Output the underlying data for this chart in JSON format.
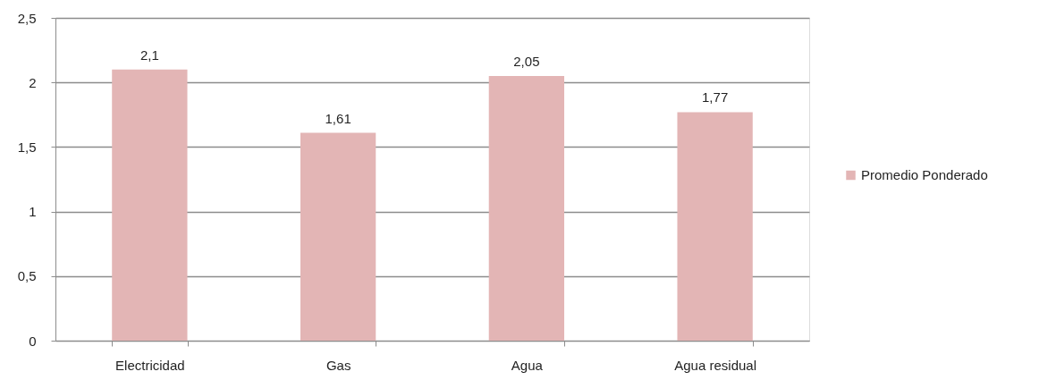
{
  "chart_data": {
    "type": "bar",
    "categories": [
      "Electricidad",
      "Gas",
      "Agua",
      "Agua residual"
    ],
    "series": [
      {
        "name": "Promedio Ponderado",
        "color": "#e3b5b5",
        "values": [
          2.1,
          1.61,
          2.05,
          1.77
        ],
        "value_labels": [
          "2,1",
          "1,61",
          "2,05",
          "1,77"
        ]
      }
    ],
    "ylim": [
      0,
      2.5
    ],
    "yticks": [
      0,
      {
        "value": 0.5,
        "label": "0,5"
      },
      1,
      {
        "value": 1.5,
        "label": "1,5"
      },
      2,
      {
        "value": 2.5,
        "label": "2,5"
      }
    ],
    "grid": "y",
    "legend": "right"
  }
}
